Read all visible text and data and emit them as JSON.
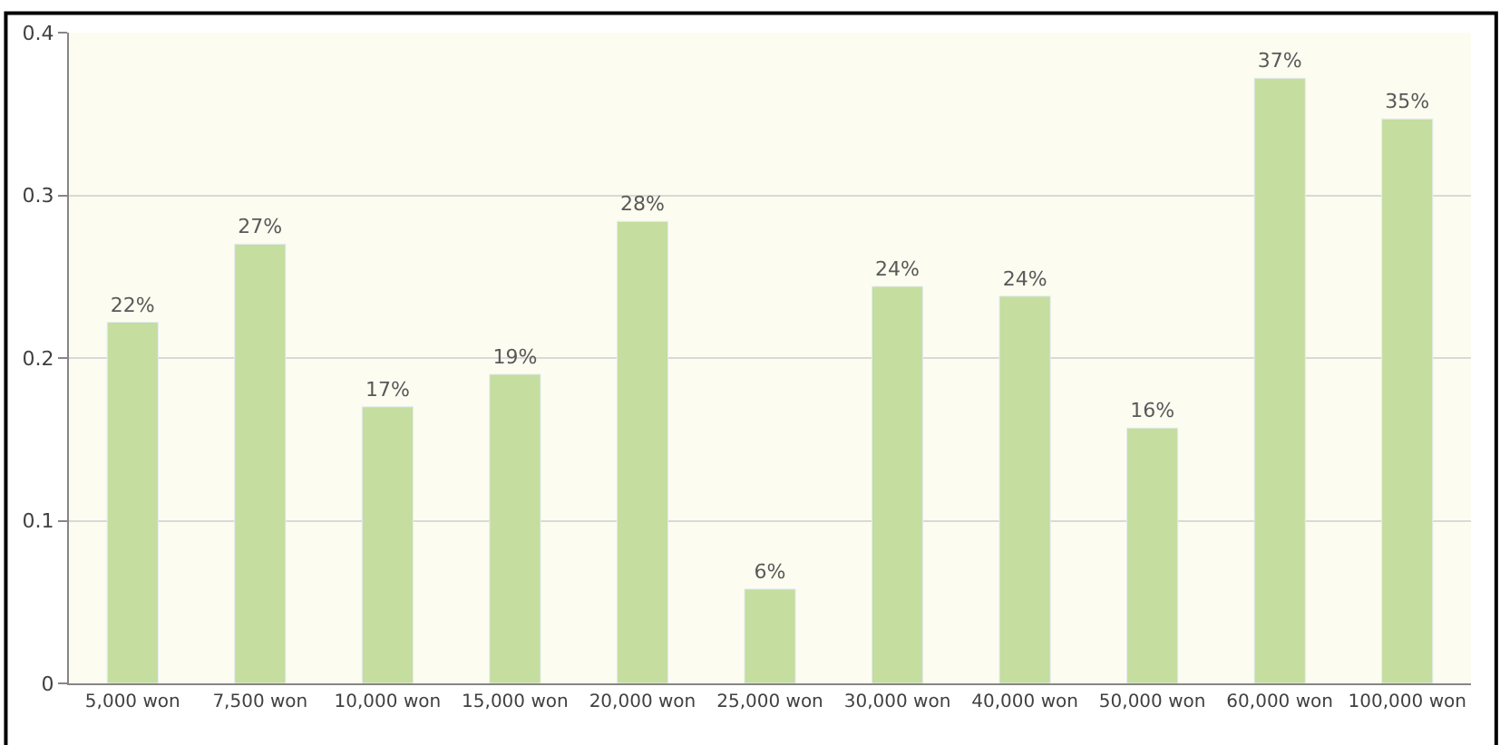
{
  "chart_data": {
    "type": "bar",
    "categories": [
      "5,000 won",
      "7,500 won",
      "10,000 won",
      "15,000 won",
      "20,000 won",
      "25,000 won",
      "30,000 won",
      "40,000 won",
      "50,000 won",
      "60,000 won",
      "100,000 won"
    ],
    "values": [
      0.222,
      0.27,
      0.17,
      0.19,
      0.284,
      0.058,
      0.244,
      0.238,
      0.157,
      0.372,
      0.347
    ],
    "value_labels": [
      "22%",
      "27%",
      "17%",
      "19%",
      "28%",
      "6%",
      "24%",
      "24%",
      "16%",
      "37%",
      "35%"
    ],
    "color": "#c5dd9f",
    "ylim": [
      0,
      0.4
    ],
    "yticks": [
      0,
      0.1,
      0.2,
      0.3,
      0.4
    ],
    "grid": "y"
  }
}
